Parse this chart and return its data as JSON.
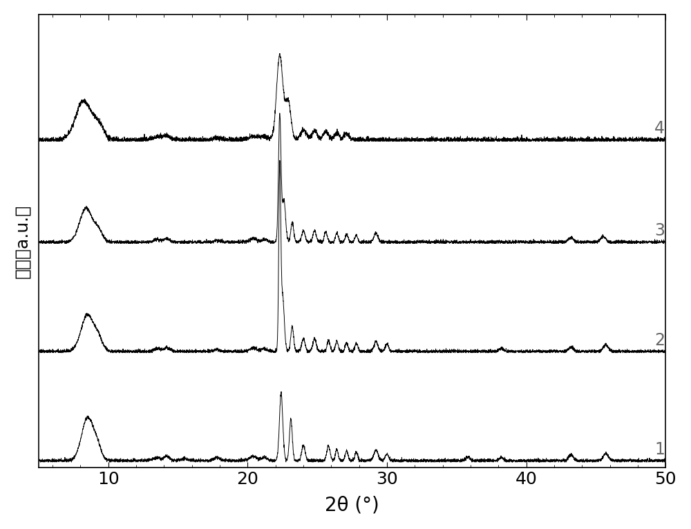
{
  "xlim": [
    5,
    50
  ],
  "xticks": [
    10,
    20,
    30,
    40,
    50
  ],
  "xlabel": "2θ (°)",
  "ylabel": "强度（a.u.）",
  "background_color": "#ffffff",
  "line_color": "#000000",
  "label_color": "#666666",
  "offsets": [
    0.0,
    1.55,
    3.1,
    4.55
  ],
  "labels": [
    "1",
    "2",
    "3",
    "4"
  ],
  "noise_scale": 0.012,
  "figsize": [
    10.0,
    7.66
  ]
}
